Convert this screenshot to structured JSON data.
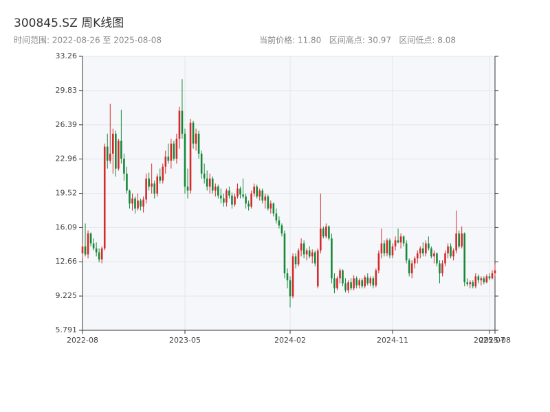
{
  "chart_data": {
    "type": "candlestick",
    "title": "300845.SZ 周K线图",
    "subtitle": "时间范围: 2022-08-26 至 2025-08-08",
    "stats": "当前价格: 11.80   区间高点: 30.97   区间低点: 8.08",
    "up_color": "#d42a2a",
    "down_color": "#17883a",
    "grid": true,
    "ylim": [
      5.791,
      33.26
    ],
    "yticks": [
      5.791,
      9.225,
      12.66,
      16.09,
      19.52,
      22.96,
      26.39,
      29.83,
      33.26
    ],
    "xlim": [
      0,
      149
    ],
    "xticks": [
      {
        "value": 0,
        "label": "2022-08"
      },
      {
        "value": 37,
        "label": "2023-05"
      },
      {
        "value": 75,
        "label": "2024-02"
      },
      {
        "value": 112,
        "label": "2024-11"
      },
      {
        "value": 147,
        "label": "2025-07"
      },
      {
        "value": 149,
        "label": "2025-08"
      }
    ],
    "candles": [
      [
        13.5,
        14.5,
        13.0,
        14.2
      ],
      [
        14.2,
        16.5,
        13.2,
        13.4
      ],
      [
        13.4,
        15.8,
        13.0,
        15.5
      ],
      [
        15.5,
        15.6,
        14.2,
        14.5
      ],
      [
        14.5,
        15.0,
        13.8,
        14.0
      ],
      [
        14.0,
        14.6,
        13.2,
        13.6
      ],
      [
        13.6,
        14.0,
        12.6,
        12.9
      ],
      [
        12.9,
        14.2,
        12.5,
        14.0
      ],
      [
        14.0,
        24.5,
        13.8,
        24.2
      ],
      [
        24.2,
        25.5,
        22.0,
        22.8
      ],
      [
        22.8,
        28.5,
        22.5,
        23.5
      ],
      [
        23.5,
        26.0,
        21.5,
        25.5
      ],
      [
        25.5,
        25.8,
        21.2,
        22.0
      ],
      [
        22.0,
        25.0,
        21.8,
        24.8
      ],
      [
        24.8,
        27.9,
        22.5,
        23.0
      ],
      [
        23.0,
        23.5,
        20.8,
        21.5
      ],
      [
        21.5,
        22.2,
        19.5,
        19.8
      ],
      [
        19.8,
        19.9,
        18.0,
        18.5
      ],
      [
        18.5,
        19.5,
        17.8,
        19.0
      ],
      [
        19.0,
        19.2,
        17.5,
        18.0
      ],
      [
        18.0,
        19.5,
        17.8,
        18.8
      ],
      [
        18.8,
        19.0,
        17.8,
        18.2
      ],
      [
        18.2,
        19.2,
        17.6,
        18.9
      ],
      [
        18.9,
        21.5,
        18.5,
        21.0
      ],
      [
        21.0,
        21.6,
        19.8,
        20.2
      ],
      [
        20.2,
        22.5,
        19.5,
        20.5
      ],
      [
        20.5,
        20.8,
        19.0,
        19.5
      ],
      [
        19.5,
        21.5,
        19.2,
        21.2
      ],
      [
        21.2,
        22.0,
        20.5,
        20.8
      ],
      [
        20.8,
        22.5,
        20.5,
        22.2
      ],
      [
        22.2,
        23.8,
        21.5,
        23.2
      ],
      [
        23.2,
        24.5,
        22.5,
        22.8
      ],
      [
        22.8,
        25.0,
        22.0,
        24.5
      ],
      [
        24.5,
        24.8,
        22.8,
        23.0
      ],
      [
        23.0,
        25.5,
        22.5,
        25.0
      ],
      [
        25.0,
        28.2,
        24.0,
        27.8
      ],
      [
        27.8,
        30.97,
        25.0,
        25.5
      ],
      [
        25.5,
        26.0,
        19.5,
        20.2
      ],
      [
        20.2,
        22.0,
        19.0,
        19.8
      ],
      [
        19.8,
        27.0,
        19.5,
        26.6
      ],
      [
        26.6,
        26.8,
        24.0,
        24.5
      ],
      [
        24.5,
        26.0,
        23.8,
        25.5
      ],
      [
        25.5,
        25.8,
        23.0,
        23.5
      ],
      [
        23.5,
        23.8,
        21.0,
        21.5
      ],
      [
        21.5,
        22.5,
        20.5,
        21.0
      ],
      [
        21.0,
        21.8,
        19.8,
        20.2
      ],
      [
        20.2,
        21.5,
        19.5,
        21.0
      ],
      [
        21.0,
        21.2,
        19.5,
        19.8
      ],
      [
        19.8,
        20.5,
        19.2,
        20.2
      ],
      [
        20.2,
        20.4,
        19.0,
        19.3
      ],
      [
        19.3,
        20.0,
        18.5,
        19.0
      ],
      [
        19.0,
        19.5,
        18.2,
        18.6
      ],
      [
        18.6,
        20.0,
        18.2,
        19.8
      ],
      [
        19.8,
        20.2,
        19.0,
        19.3
      ],
      [
        19.3,
        19.6,
        18.0,
        18.4
      ],
      [
        18.4,
        19.5,
        18.2,
        19.2
      ],
      [
        19.2,
        20.5,
        19.0,
        20.0
      ],
      [
        20.0,
        20.2,
        19.0,
        19.4
      ],
      [
        19.4,
        21.0,
        19.0,
        19.2
      ],
      [
        19.2,
        19.5,
        18.0,
        18.5
      ],
      [
        18.5,
        18.8,
        17.8,
        18.2
      ],
      [
        18.2,
        19.8,
        18.0,
        19.5
      ],
      [
        19.5,
        20.5,
        19.2,
        20.2
      ],
      [
        20.2,
        20.4,
        19.0,
        19.2
      ],
      [
        19.2,
        20.0,
        18.8,
        19.8
      ],
      [
        19.8,
        20.0,
        18.5,
        18.8
      ],
      [
        18.8,
        19.5,
        18.0,
        19.2
      ],
      [
        19.2,
        19.4,
        17.8,
        18.0
      ],
      [
        18.0,
        18.8,
        17.5,
        18.5
      ],
      [
        18.5,
        18.6,
        17.2,
        17.5
      ],
      [
        17.5,
        18.0,
        16.5,
        16.8
      ],
      [
        16.8,
        17.2,
        16.0,
        16.3
      ],
      [
        16.3,
        16.5,
        15.2,
        15.5
      ],
      [
        15.5,
        15.8,
        11.0,
        11.5
      ],
      [
        11.5,
        12.0,
        10.0,
        10.8
      ],
      [
        10.8,
        11.2,
        8.08,
        9.2
      ],
      [
        9.2,
        13.5,
        9.0,
        13.2
      ],
      [
        13.2,
        13.5,
        12.0,
        12.4
      ],
      [
        12.4,
        14.0,
        12.2,
        13.8
      ],
      [
        13.8,
        15.0,
        13.2,
        14.5
      ],
      [
        14.5,
        14.8,
        13.0,
        13.4
      ],
      [
        13.4,
        14.0,
        12.8,
        13.8
      ],
      [
        13.8,
        14.2,
        13.0,
        13.2
      ],
      [
        13.2,
        13.9,
        12.5,
        13.6
      ],
      [
        13.6,
        13.8,
        12.2,
        12.5
      ],
      [
        10.2,
        14.0,
        10.0,
        13.8
      ],
      [
        13.8,
        19.5,
        13.5,
        16.0
      ],
      [
        16.0,
        16.2,
        15.0,
        15.2
      ],
      [
        15.2,
        16.5,
        15.0,
        16.2
      ],
      [
        16.2,
        16.3,
        14.8,
        15.0
      ],
      [
        15.0,
        15.5,
        10.5,
        11.0
      ],
      [
        11.0,
        11.5,
        9.5,
        10.0
      ],
      [
        10.0,
        11.2,
        9.8,
        11.0
      ],
      [
        11.0,
        12.0,
        10.5,
        11.8
      ],
      [
        11.8,
        11.9,
        10.2,
        10.5
      ],
      [
        10.5,
        11.0,
        9.6,
        9.8
      ],
      [
        9.8,
        10.8,
        9.5,
        10.6
      ],
      [
        10.6,
        11.0,
        9.8,
        10.0
      ],
      [
        10.0,
        11.3,
        9.8,
        11.0
      ],
      [
        11.0,
        11.2,
        10.0,
        10.3
      ],
      [
        10.3,
        11.0,
        10.0,
        10.8
      ],
      [
        10.8,
        11.0,
        10.0,
        10.2
      ],
      [
        10.2,
        11.3,
        10.0,
        11.1
      ],
      [
        11.1,
        11.5,
        10.3,
        10.5
      ],
      [
        10.5,
        11.2,
        10.2,
        11.0
      ],
      [
        11.0,
        11.2,
        10.0,
        10.3
      ],
      [
        10.3,
        12.0,
        10.1,
        11.8
      ],
      [
        11.8,
        13.8,
        11.5,
        13.5
      ],
      [
        13.5,
        16.0,
        13.0,
        14.5
      ],
      [
        14.5,
        14.8,
        13.2,
        13.5
      ],
      [
        13.5,
        15.0,
        13.2,
        14.8
      ],
      [
        14.8,
        15.0,
        13.0,
        13.3
      ],
      [
        13.3,
        14.5,
        13.0,
        14.2
      ],
      [
        14.2,
        15.2,
        13.8,
        14.8
      ],
      [
        14.8,
        16.0,
        14.5,
        14.6
      ],
      [
        14.6,
        15.5,
        14.0,
        15.2
      ],
      [
        15.2,
        15.3,
        14.2,
        14.5
      ],
      [
        14.5,
        14.8,
        12.5,
        12.8
      ],
      [
        12.8,
        13.0,
        11.2,
        11.5
      ],
      [
        11.5,
        12.8,
        11.0,
        12.5
      ],
      [
        12.5,
        13.2,
        12.0,
        13.0
      ],
      [
        13.0,
        13.8,
        12.5,
        13.5
      ],
      [
        13.5,
        14.2,
        13.0,
        14.0
      ],
      [
        14.0,
        14.6,
        13.2,
        13.5
      ],
      [
        13.5,
        14.8,
        13.2,
        14.5
      ],
      [
        14.5,
        15.2,
        13.8,
        14.0
      ],
      [
        14.0,
        14.2,
        13.0,
        13.2
      ],
      [
        13.2,
        13.8,
        12.5,
        13.5
      ],
      [
        13.5,
        13.6,
        12.2,
        12.5
      ],
      [
        12.5,
        12.8,
        10.5,
        11.5
      ],
      [
        11.5,
        12.8,
        11.2,
        12.5
      ],
      [
        12.5,
        13.8,
        12.2,
        13.5
      ],
      [
        13.5,
        14.5,
        13.0,
        14.2
      ],
      [
        14.2,
        14.5,
        13.0,
        13.2
      ],
      [
        13.2,
        14.0,
        12.8,
        13.8
      ],
      [
        13.8,
        17.8,
        13.5,
        15.5
      ],
      [
        15.5,
        15.8,
        14.0,
        14.2
      ],
      [
        14.2,
        16.2,
        14.0,
        15.5
      ],
      [
        15.5,
        15.6,
        10.2,
        10.6
      ],
      [
        10.6,
        11.0,
        10.2,
        10.4
      ],
      [
        10.4,
        10.8,
        10.0,
        10.6
      ],
      [
        10.6,
        10.8,
        10.0,
        10.2
      ],
      [
        10.2,
        11.5,
        10.0,
        11.2
      ],
      [
        11.2,
        11.4,
        10.5,
        10.8
      ],
      [
        10.8,
        11.2,
        10.3,
        11.0
      ],
      [
        11.0,
        11.2,
        10.4,
        10.6
      ],
      [
        10.6,
        11.4,
        10.5,
        11.2
      ],
      [
        11.2,
        11.5,
        10.8,
        11.0
      ],
      [
        11.0,
        11.8,
        10.9,
        11.5
      ],
      [
        11.5,
        12.4,
        11.2,
        11.8
      ]
    ]
  }
}
